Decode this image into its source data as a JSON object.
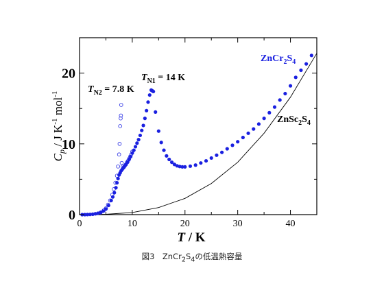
{
  "chart_data": {
    "type": "scatter",
    "xlabel_symbol": "T",
    "xlabel_unit": " / K",
    "ylabel_symbol": "C",
    "ylabel_sub": "p",
    "ylabel_unit": " / J K",
    "ylabel_exp1": "-1",
    "ylabel_mid": " mol",
    "ylabel_exp2": "-1",
    "xlim": [
      0,
      45
    ],
    "ylim": [
      0,
      25
    ],
    "x_ticks": [
      0,
      10,
      20,
      30,
      40
    ],
    "x_tick_labels": [
      "0",
      "10",
      "20",
      "30",
      "40"
    ],
    "y_ticks": [
      0,
      10,
      20
    ],
    "y_tick_labels": [
      "0",
      "10",
      "20"
    ],
    "grid": false,
    "annotations": {
      "tn1": {
        "sym": "T",
        "sub": "N1",
        "rest": " = 14 K"
      },
      "tn2": {
        "sym": "T",
        "sub": "N2",
        "rest": " = 7.8 K"
      },
      "zncr2s4": {
        "base": "ZnCr",
        "n1": "2",
        "mid": "S",
        "n2": "4"
      },
      "znsc2s4": {
        "base": "ZnSc",
        "n1": "2",
        "mid": "S",
        "n2": "4"
      }
    },
    "colors": {
      "filled": "#1a20e0",
      "open": "#3a3fe6",
      "line": "#000000"
    },
    "series": [
      {
        "marker": "filled",
        "x": [
          0.5,
          1,
          1.5,
          2,
          2.5,
          3,
          3.5,
          4,
          4.5,
          5,
          5.5,
          6,
          6.3,
          6.6,
          6.9,
          7.1,
          7.3,
          7.5,
          7.7,
          7.9,
          8.1,
          8.3,
          8.5,
          8.8,
          9.1,
          9.4,
          9.7,
          10,
          10.3,
          10.6,
          10.9,
          11.2,
          11.5,
          11.8,
          12.1,
          12.4,
          12.7,
          13,
          13.3,
          13.6,
          13.8,
          14,
          14.4,
          15,
          15.5,
          16,
          16.5,
          17,
          17.5,
          18,
          18.5,
          19,
          19.5,
          20,
          21,
          22,
          23,
          24,
          25,
          26,
          27,
          28,
          29,
          30,
          31,
          32,
          33,
          34,
          35,
          36,
          37,
          38,
          39,
          40,
          41,
          42,
          43,
          44
        ],
        "y": [
          0,
          0,
          0.01,
          0.03,
          0.06,
          0.12,
          0.2,
          0.3,
          0.5,
          0.8,
          1.3,
          2,
          2.5,
          3.1,
          3.8,
          4.5,
          5.1,
          5.6,
          5.9,
          6.2,
          6.4,
          6.6,
          6.8,
          7.1,
          7.4,
          7.8,
          8.2,
          8.7,
          9.1,
          9.6,
          10.1,
          10.6,
          11.2,
          11.9,
          12.6,
          13.6,
          14.7,
          15.9,
          16.9,
          17.6,
          17.5,
          17.4,
          14.5,
          11.8,
          10.2,
          9.1,
          8.3,
          7.8,
          7.4,
          7.1,
          6.9,
          6.8,
          6.75,
          6.75,
          6.85,
          7,
          7.3,
          7.6,
          8,
          8.4,
          8.8,
          9.3,
          9.8,
          10.3,
          10.9,
          11.5,
          12.1,
          12.8,
          13.6,
          14.4,
          15.2,
          16.2,
          17.1,
          18.2,
          19.4,
          20.4,
          21.3,
          22.5
        ]
      },
      {
        "marker": "open",
        "x": [
          4,
          4.6,
          5,
          5.4,
          5.8,
          6.2,
          6.5,
          6.8,
          7.1,
          7.3,
          7.5,
          7.6,
          7.7,
          7.8,
          7.85,
          7.9,
          8,
          8.2,
          8.4,
          8.6,
          8.8,
          9,
          9.2,
          9.4,
          9.6,
          9.8,
          10
        ],
        "y": [
          0.3,
          0.6,
          0.9,
          1.4,
          2,
          2.8,
          3.6,
          4.5,
          5.5,
          6.8,
          8.5,
          10,
          12.5,
          13.6,
          14,
          15.5,
          7.3,
          6.8,
          6.7,
          6.9,
          7.1,
          7.4,
          7.6,
          7.9,
          8.2,
          8.5,
          8.9
        ]
      },
      {
        "marker": "line",
        "x": [
          0,
          5,
          10,
          15,
          20,
          25,
          30,
          35,
          40,
          45
        ],
        "y": [
          0,
          0.05,
          0.3,
          1,
          2.3,
          4.4,
          7.4,
          11.5,
          16.6,
          22.8
        ]
      }
    ]
  },
  "caption": {
    "prefix": "図3　ZnCr",
    "sub1": "2",
    "mid": "S",
    "sub2": "4",
    "suffix": "の低温熱容量"
  }
}
